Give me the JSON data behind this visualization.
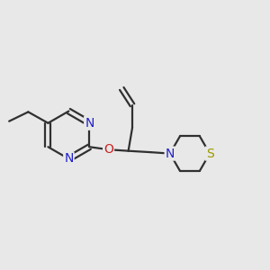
{
  "bg_color": "#e8e8e8",
  "bond_color": "#303030",
  "N_color": "#2020cc",
  "O_color": "#cc2020",
  "S_color": "#999900",
  "line_width": 1.6,
  "font_size": 10,
  "fig_size": [
    3.0,
    3.0
  ],
  "dpi": 100,
  "xlim": [
    0,
    10
  ],
  "ylim": [
    0,
    10
  ]
}
